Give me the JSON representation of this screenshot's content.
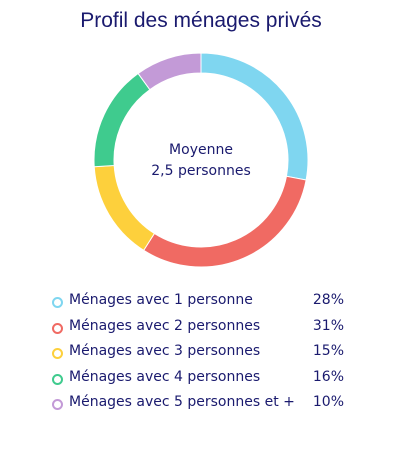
{
  "chart_data": {
    "type": "pie",
    "title": "Profil des ménages privés",
    "center_text": [
      "Moyenne",
      "2,5 personnes"
    ],
    "categories": [
      "Ménages avec 1 personne",
      "Ménages avec 2 personnes",
      "Ménages avec 3 personnes",
      "Ménages avec 4 personnes",
      "Ménages avec 5 personnes et +"
    ],
    "values": [
      28,
      31,
      15,
      16,
      10
    ],
    "value_labels": [
      "28%",
      "31%",
      "15%",
      "16%",
      "10%"
    ],
    "unit": "%",
    "colors": [
      "#7fd6f0",
      "#f06a63",
      "#fdd03c",
      "#3fcb8e",
      "#c39ad7"
    ],
    "legend": "bottom"
  }
}
